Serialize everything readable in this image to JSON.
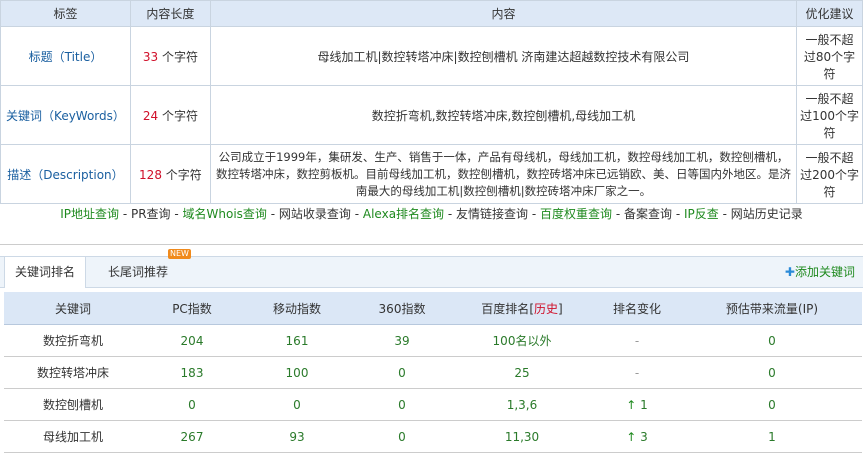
{
  "meta_table": {
    "headers": [
      "标签",
      "内容长度",
      "内容",
      "优化建议"
    ],
    "rows": [
      {
        "label": "标题（Title）",
        "length": "33",
        "unit": " 个字符",
        "content": "母线加工机|数控转塔冲床|数控刨槽机 济南建达超越数控技术有限公司",
        "advice": "一般不超过80个字符"
      },
      {
        "label": "关键词（KeyWords）",
        "length": "24",
        "unit": " 个字符",
        "content": "数控折弯机,数控转塔冲床,数控刨槽机,母线加工机",
        "advice": "一般不超过100个字符"
      },
      {
        "label": "描述（Description）",
        "length": "128",
        "unit": " 个字符",
        "content": "公司成立于1999年，集研发、生产、销售于一体，产品有母线机，母线加工机，数控母线加工机，数控刨槽机，数控转塔冲床，数控剪板机。目前母线加工机，数控刨槽机，数控砖塔冲床已远销欧、美、日等国内外地区。是济南最大的母线加工机|数控刨槽机|数控砖塔冲床厂家之一。",
        "advice": "一般不超过200个字符"
      }
    ]
  },
  "links": [
    {
      "text": "IP地址查询",
      "green": true
    },
    {
      "text": "PR查询",
      "green": false
    },
    {
      "text": "域名Whois查询",
      "green": true
    },
    {
      "text": "网站收录查询",
      "green": false
    },
    {
      "text": "Alexa排名查询",
      "green": true
    },
    {
      "text": "友情链接查询",
      "green": false
    },
    {
      "text": "百度权重查询",
      "green": true
    },
    {
      "text": "备案查询",
      "green": false
    },
    {
      "text": "IP反查",
      "green": true
    },
    {
      "text": "网站历史记录",
      "green": false
    }
  ],
  "tabs": {
    "active": "关键词排名",
    "second": "长尾词推荐",
    "badge": "NEW",
    "add": "添加关键词"
  },
  "rank_table": {
    "headers": [
      "关键词",
      "PC指数",
      "移动指数",
      "360指数",
      "百度排名",
      "历史",
      "排名变化",
      "预估带来流量(IP)"
    ],
    "rows": [
      {
        "kw": "数控折弯机",
        "pc": "204",
        "mobile": "161",
        "s360": "39",
        "baidu": "100名以外",
        "change": "-",
        "up": false,
        "ip": "0"
      },
      {
        "kw": "数控转塔冲床",
        "pc": "183",
        "mobile": "100",
        "s360": "0",
        "baidu": "25",
        "change": "-",
        "up": false,
        "ip": "0"
      },
      {
        "kw": "数控刨槽机",
        "pc": "0",
        "mobile": "0",
        "s360": "0",
        "baidu": "1,3,6",
        "change": "1",
        "up": true,
        "ip": "0"
      },
      {
        "kw": "母线加工机",
        "pc": "267",
        "mobile": "93",
        "s360": "0",
        "baidu": "11,30",
        "change": "3",
        "up": true,
        "ip": "1"
      }
    ]
  }
}
